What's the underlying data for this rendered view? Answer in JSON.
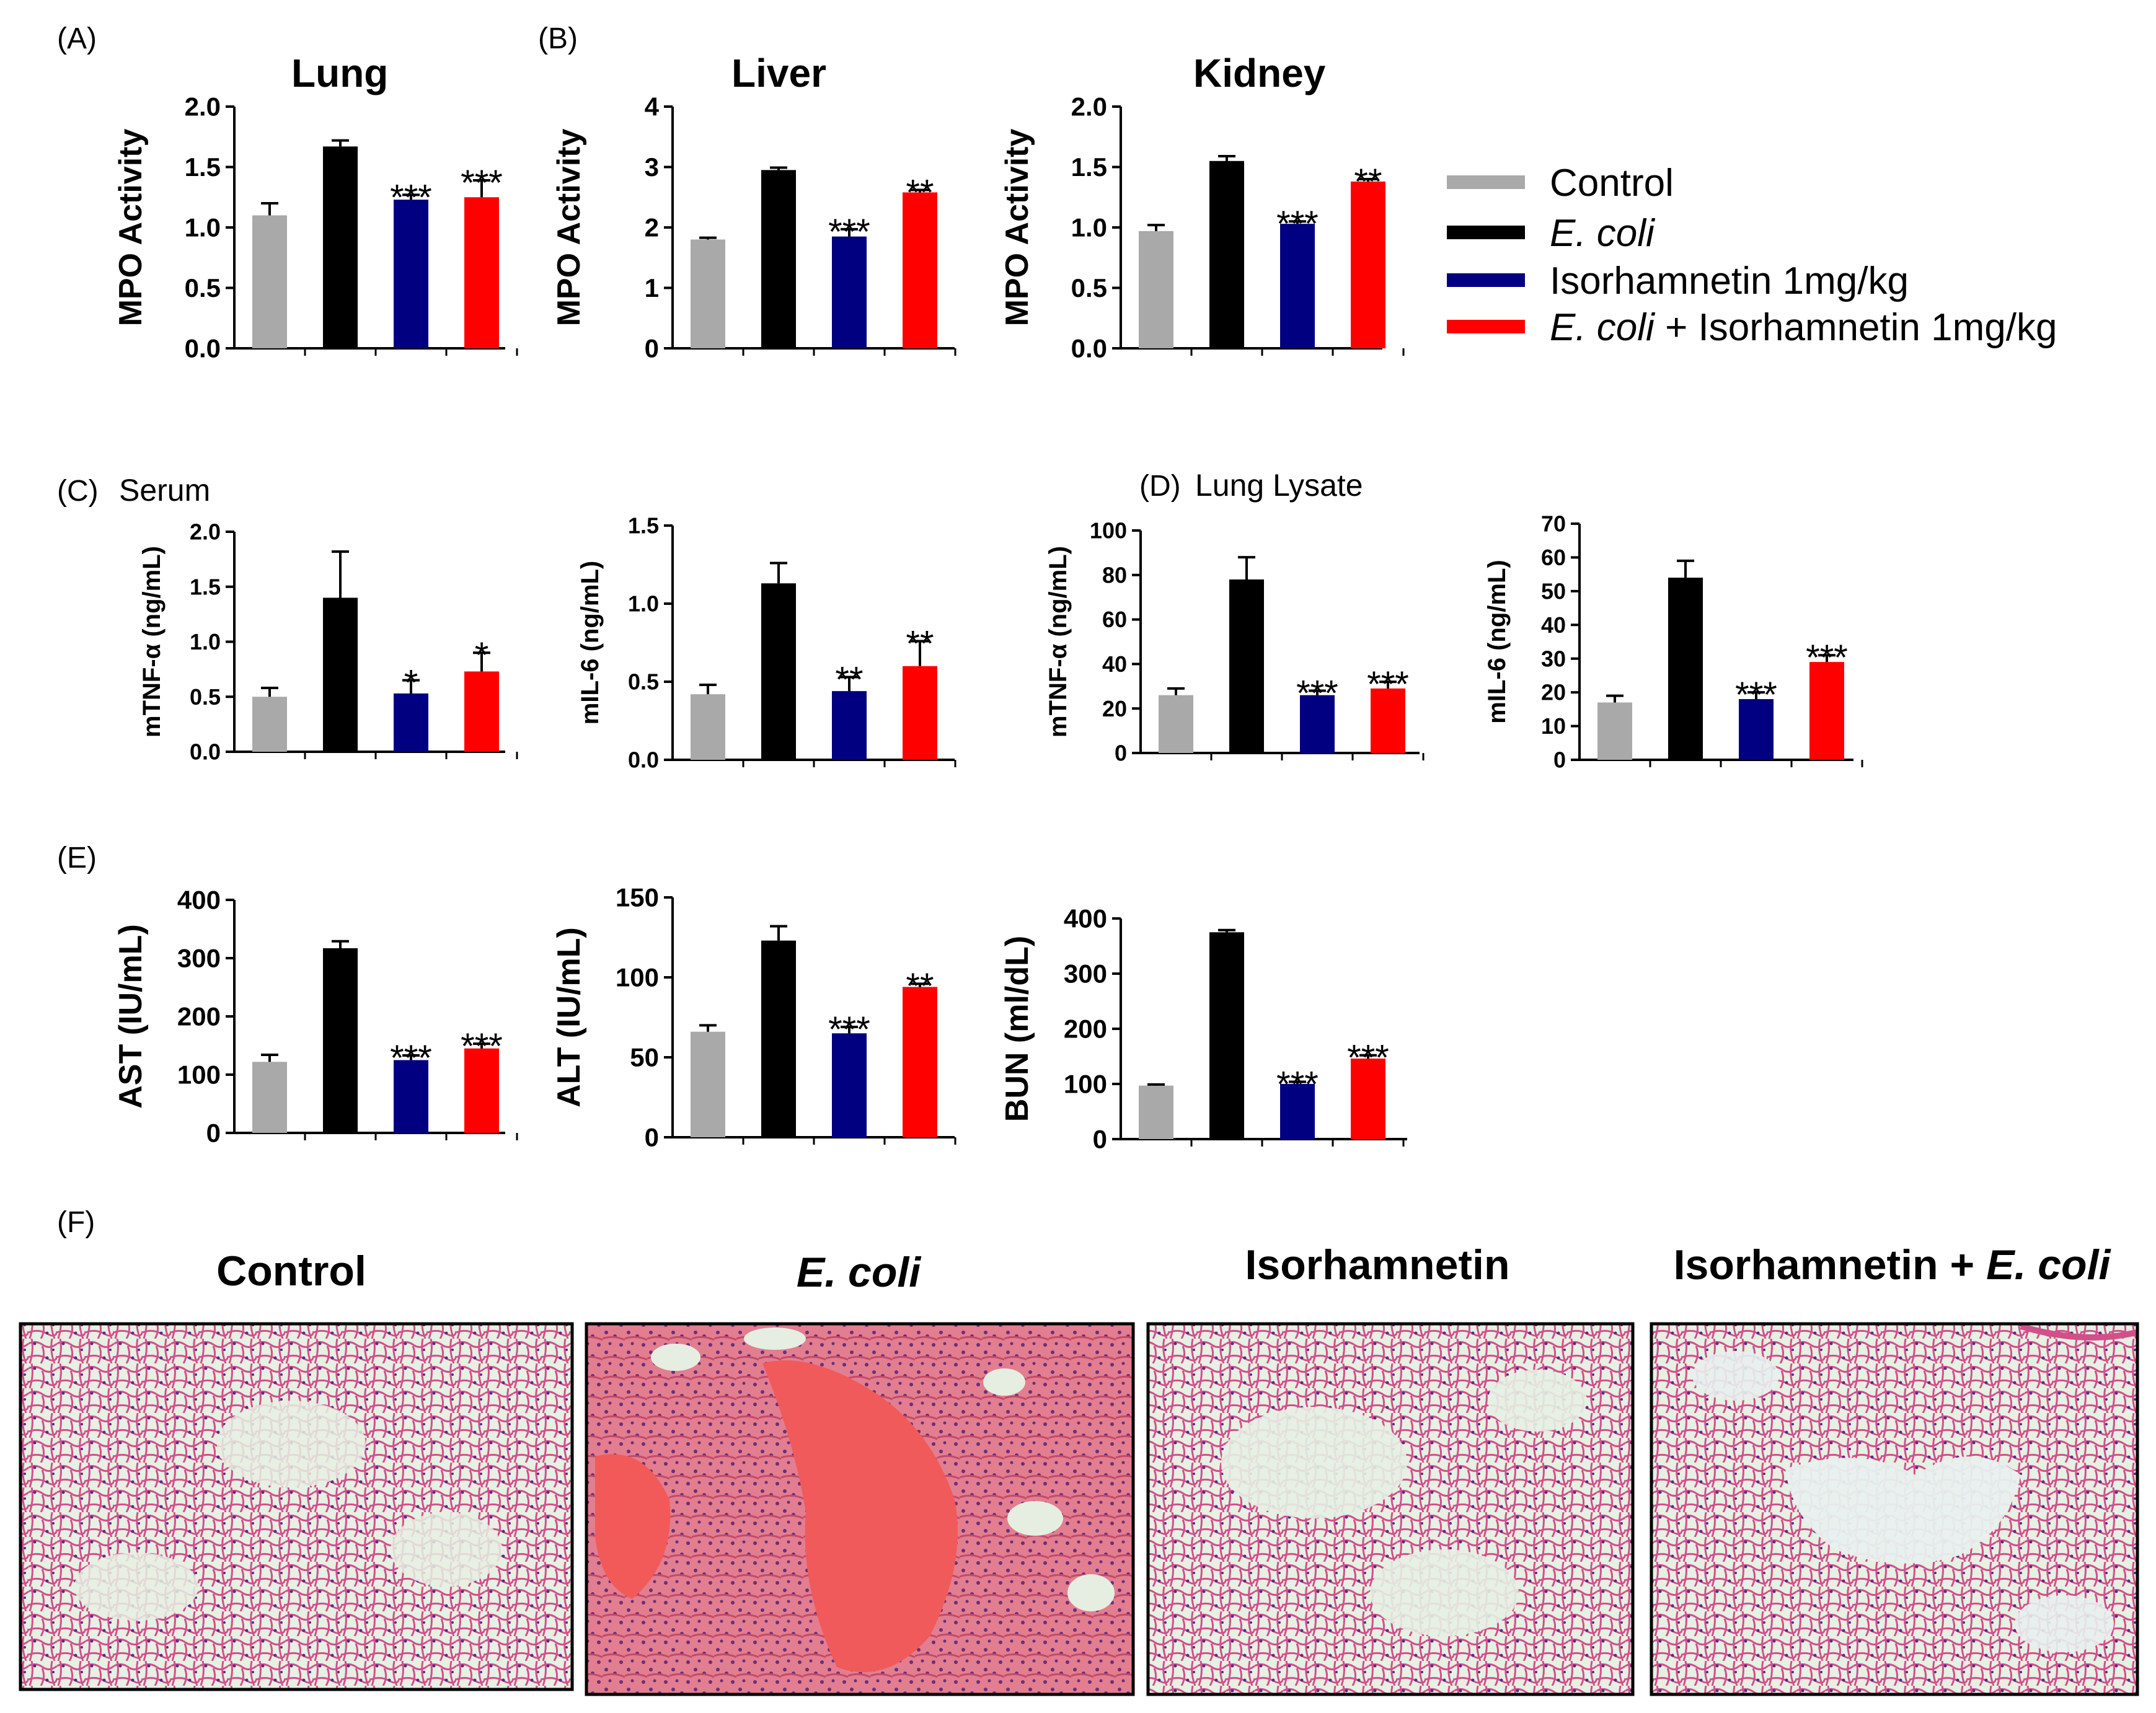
{
  "labels": {
    "a": "(A)",
    "b": "(B)",
    "c": "(C)",
    "c_sub": "Serum",
    "d": "(D)",
    "d_sub": "Lung Lysate",
    "e": "(E)",
    "f": "(F)"
  },
  "legend": [
    {
      "label": "Control",
      "color": "#a9a9a9",
      "italic": false
    },
    {
      "label": "E. coli",
      "color": "#000000",
      "italic": true
    },
    {
      "label": "Isorhamnetin 1mg/kg",
      "color": "#000080",
      "italic": false
    },
    {
      "label_italic": "E. coli",
      "label_rest": " + Isorhamnetin 1mg/kg",
      "color": "#ff0000"
    }
  ],
  "chart_data": [
    {
      "id": "lung",
      "type": "bar",
      "title": "Lung",
      "ylabel": "MPO Activity",
      "categories": [
        "Control",
        "E. coli",
        "Isorhamnetin 1mg/kg",
        "E. coli + Isorhamnetin 1mg/kg"
      ],
      "values": [
        1.1,
        1.67,
        1.23,
        1.25
      ],
      "errors": [
        0.1,
        0.05,
        0.04,
        0.14
      ],
      "sig": [
        "",
        "",
        "***",
        "***"
      ],
      "ylim": [
        0,
        2.0
      ],
      "ticks": [
        "0.0",
        "0.5",
        "1.0",
        "1.5",
        "2.0"
      ]
    },
    {
      "id": "liver",
      "type": "bar",
      "title": "Liver",
      "ylabel": "MPO Activity",
      "categories": [
        "Control",
        "E. coli",
        "Isorhamnetin 1mg/kg",
        "E. coli + Isorhamnetin 1mg/kg"
      ],
      "values": [
        1.8,
        2.95,
        1.85,
        2.58
      ],
      "errors": [
        0.03,
        0.04,
        0.12,
        0.04
      ],
      "sig": [
        "",
        "",
        "***",
        "**"
      ],
      "ylim": [
        0,
        4
      ],
      "ticks": [
        "0",
        "1",
        "2",
        "3",
        "4"
      ]
    },
    {
      "id": "kidney",
      "type": "bar",
      "title": "Kidney",
      "ylabel": "MPO Activity",
      "categories": [
        "Control",
        "E. coli",
        "Isorhamnetin 1mg/kg",
        "E. coli + Isorhamnetin 1mg/kg"
      ],
      "values": [
        0.97,
        1.55,
        1.03,
        1.38
      ],
      "errors": [
        0.05,
        0.04,
        0.02,
        0.02
      ],
      "sig": [
        "",
        "",
        "***",
        "**"
      ],
      "ylim": [
        0,
        2.0
      ],
      "ticks": [
        "0.0",
        "0.5",
        "1.0",
        "1.5",
        "2.0"
      ]
    },
    {
      "id": "serum_tnf",
      "type": "bar",
      "title": "",
      "ylabel": "mTNF-α (ng/mL)",
      "categories": [
        "Control",
        "E. coli",
        "Isorhamnetin 1mg/kg",
        "E. coli + Isorhamnetin 1mg/kg"
      ],
      "values": [
        0.5,
        1.4,
        0.53,
        0.73
      ],
      "errors": [
        0.08,
        0.42,
        0.12,
        0.17
      ],
      "sig": [
        "",
        "",
        "*",
        "*"
      ],
      "ylim": [
        0,
        2.0
      ],
      "ticks": [
        "0.0",
        "0.5",
        "1.0",
        "1.5",
        "2.0"
      ]
    },
    {
      "id": "serum_il6",
      "type": "bar",
      "title": "",
      "ylabel": "mIL-6 (ng/mL)",
      "categories": [
        "Control",
        "E. coli",
        "Isorhamnetin 1mg/kg",
        "E. coli + Isorhamnetin 1mg/kg"
      ],
      "values": [
        0.42,
        1.13,
        0.44,
        0.6
      ],
      "errors": [
        0.06,
        0.13,
        0.09,
        0.16
      ],
      "sig": [
        "",
        "",
        "**",
        "**"
      ],
      "ylim": [
        0,
        1.5
      ],
      "ticks": [
        "0.0",
        "0.5",
        "1.0",
        "1.5"
      ]
    },
    {
      "id": "lung_tnf",
      "type": "bar",
      "title": "",
      "ylabel": "mTNF-α (ng/mL)",
      "categories": [
        "Control",
        "E. coli",
        "Isorhamnetin 1mg/kg",
        "E. coli + Isorhamnetin 1mg/kg"
      ],
      "values": [
        26,
        78,
        26,
        29
      ],
      "errors": [
        3,
        10,
        2,
        3
      ],
      "sig": [
        "",
        "",
        "***",
        "***"
      ],
      "ylim": [
        0,
        100
      ],
      "ticks": [
        "0",
        "20",
        "40",
        "60",
        "80",
        "100"
      ]
    },
    {
      "id": "lung_il6",
      "type": "bar",
      "title": "",
      "ylabel": "mIL-6 (ng/mL)",
      "categories": [
        "Control",
        "E. coli",
        "Isorhamnetin 1mg/kg",
        "E. coli + Isorhamnetin 1mg/kg"
      ],
      "values": [
        17,
        54,
        18,
        29
      ],
      "errors": [
        2,
        5,
        2,
        2
      ],
      "sig": [
        "",
        "",
        "***",
        "***"
      ],
      "ylim": [
        0,
        70
      ],
      "ticks": [
        "0",
        "10",
        "20",
        "30",
        "40",
        "50",
        "60",
        "70"
      ]
    },
    {
      "id": "ast",
      "type": "bar",
      "title": "",
      "ylabel": "AST (IU/mL)",
      "categories": [
        "Control",
        "E. coli",
        "Isorhamnetin 1mg/kg",
        "E. coli + Isorhamnetin 1mg/kg"
      ],
      "values": [
        122,
        317,
        125,
        145
      ],
      "errors": [
        12,
        12,
        8,
        8
      ],
      "sig": [
        "",
        "",
        "***",
        "***"
      ],
      "ylim": [
        0,
        400
      ],
      "ticks": [
        "0",
        "100",
        "200",
        "300",
        "400"
      ]
    },
    {
      "id": "alt",
      "type": "bar",
      "title": "",
      "ylabel": "ALT (IU/mL)",
      "categories": [
        "Control",
        "E. coli",
        "Isorhamnetin 1mg/kg",
        "E. coli + Isorhamnetin 1mg/kg"
      ],
      "values": [
        66,
        123,
        65,
        94
      ],
      "errors": [
        4,
        9,
        4,
        2
      ],
      "sig": [
        "",
        "",
        "***",
        "**"
      ],
      "ylim": [
        0,
        150
      ],
      "ticks": [
        "0",
        "50",
        "100",
        "150"
      ]
    },
    {
      "id": "bun",
      "type": "bar",
      "title": "",
      "ylabel": "BUN (ml/dL)",
      "categories": [
        "Control",
        "E. coli",
        "Isorhamnetin 1mg/kg",
        "E. coli + Isorhamnetin 1mg/kg"
      ],
      "values": [
        97,
        375,
        100,
        146
      ],
      "errors": [
        2,
        4,
        4,
        6
      ],
      "sig": [
        "",
        "",
        "***",
        "***"
      ],
      "ylim": [
        0,
        400
      ],
      "ticks": [
        "0",
        "100",
        "200",
        "300",
        "400"
      ]
    }
  ],
  "histology": [
    {
      "title": "Control"
    },
    {
      "title": "E. coli"
    },
    {
      "title": "Isorhamnetin"
    },
    {
      "title_rest": "Isorhamnetin + ",
      "title_italic": "E. coli"
    }
  ],
  "colors": {
    "bars": [
      "#a9a9a9",
      "#000000",
      "#000080",
      "#ff0000"
    ]
  }
}
